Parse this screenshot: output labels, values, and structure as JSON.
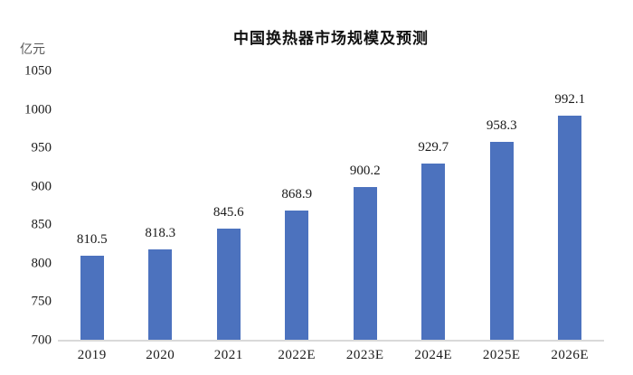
{
  "chart_data": {
    "type": "bar",
    "title": "中国换热器市场规模及预测",
    "ylabel": "亿元",
    "xlabel": "",
    "categories": [
      "2019",
      "2020",
      "2021",
      "2022E",
      "2023E",
      "2024E",
      "2025E",
      "2026E"
    ],
    "values": [
      810.5,
      818.3,
      845.6,
      868.9,
      900.2,
      929.7,
      958.3,
      992.1
    ],
    "value_labels": [
      "810.5",
      "818.3",
      "845.6",
      "868.9",
      "900.2",
      "929.7",
      "958.3",
      "992.1"
    ],
    "ylim": [
      700,
      1050
    ],
    "ytick_step": 50,
    "grid": false,
    "legend_position": "none",
    "colors": {
      "bar": "#4C72BE",
      "axis_line": "#D9D9D9",
      "text": "#1A1A1A",
      "unit_label": "#595959",
      "background": "#FFFFFF"
    }
  }
}
